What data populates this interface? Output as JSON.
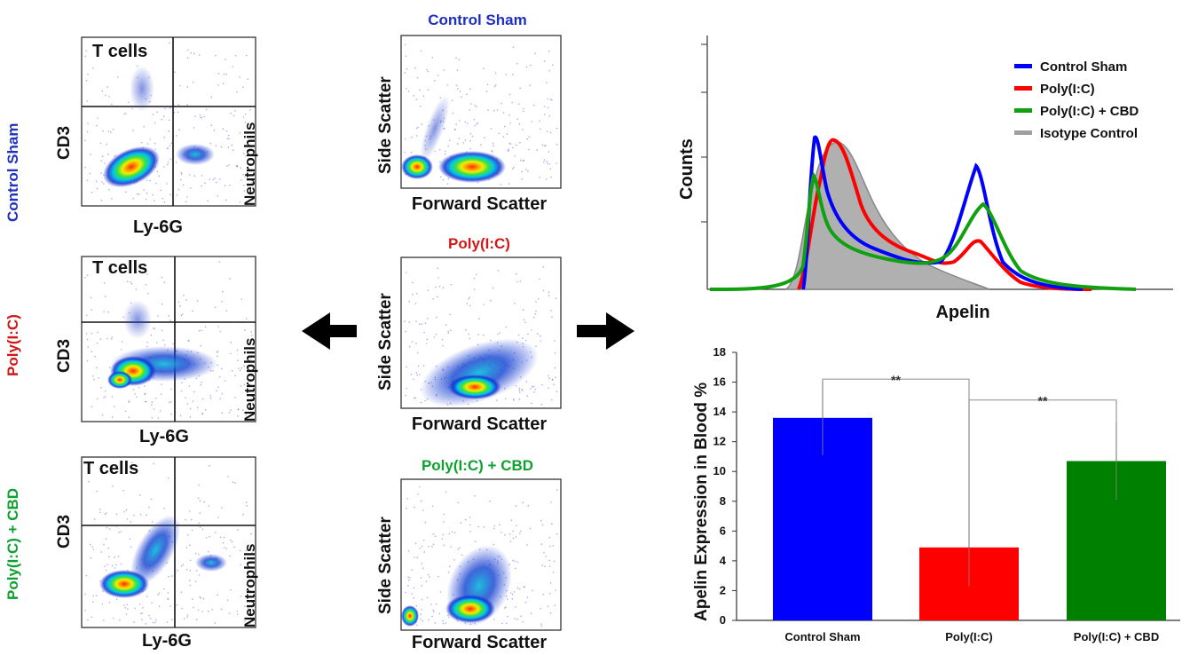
{
  "colors": {
    "control": "#0000ff",
    "polyic": "#ff0000",
    "polyic_cbd": "#008000",
    "isotype": "#a8a8a8",
    "control_label": "#1f2fbf",
    "polyic_label": "#d01818",
    "polyic_cbd_label": "#10a030"
  },
  "groups": [
    "Control Sham",
    "Poly(I:C)",
    "Poly(I:C) + CBD"
  ],
  "cd3_panels": {
    "quadrant_label": "T cells",
    "side_label": "Neutrophils",
    "y_axis": "CD3",
    "x_axis": "Ly-6G"
  },
  "scatter_panels": {
    "y_axis": "Side Scatter",
    "x_axis": "Forward Scatter"
  },
  "arrows": [
    "left-arrow",
    "right-arrow"
  ],
  "histogram": {
    "ylabel": "Counts",
    "xlabel": "Apelin",
    "legend": [
      "Control Sham",
      "Poly(I:C)",
      "Poly(I:C) + CBD",
      "Isotype Control"
    ]
  },
  "chart_data": {
    "type": "bar",
    "categories": [
      "Control Sham",
      "Poly(I:C)",
      "Poly(I:C) + CBD"
    ],
    "values": [
      13.6,
      4.9,
      10.7
    ],
    "errors": [
      2.5,
      2.6,
      2.6
    ],
    "ylabel": "Apelin Expression in Blood %",
    "ylim": [
      0,
      18
    ],
    "yticks": [
      "0",
      "2",
      "4",
      "6",
      "8",
      "10",
      "12",
      "14",
      "16",
      "18"
    ],
    "significance": [
      {
        "pair": [
          "Control Sham",
          "Poly(I:C)"
        ],
        "label": "**"
      },
      {
        "pair": [
          "Poly(I:C)",
          "Poly(I:C) + CBD"
        ],
        "label": "**"
      }
    ]
  }
}
